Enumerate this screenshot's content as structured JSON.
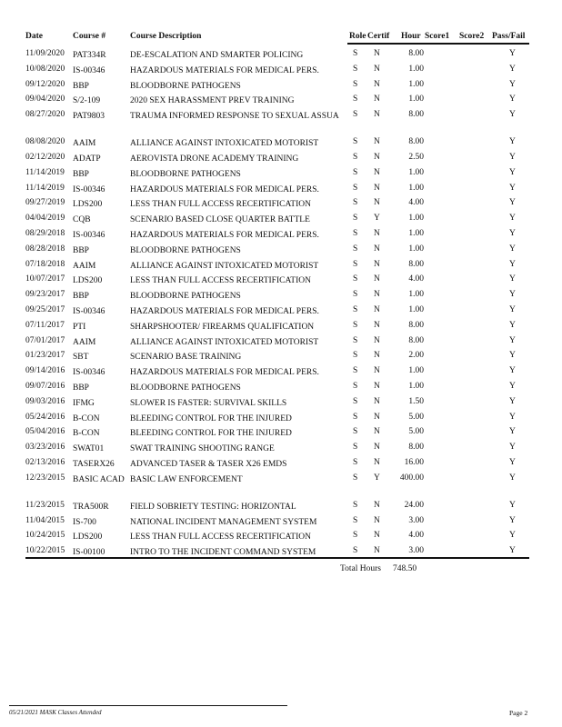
{
  "headers": {
    "date": "Date",
    "course": "Course #",
    "desc": "Course Description",
    "role": "Role",
    "certif": "Certif",
    "hour": "Hour",
    "score1": "Score1",
    "score2": "Score2",
    "passfail": "Pass/Fail"
  },
  "rows": [
    {
      "date": "11/09/2020",
      "course": "PAT334R",
      "desc": "DE-ESCALATION AND SMARTER POLICING",
      "role": "S",
      "certif": "N",
      "hour": "8.00",
      "pf": "Y"
    },
    {
      "date": "10/08/2020",
      "course": "IS-00346",
      "desc": "HAZARDOUS MATERIALS FOR MEDICAL PERS.",
      "role": "S",
      "certif": "N",
      "hour": "1.00",
      "pf": "Y"
    },
    {
      "date": "09/12/2020",
      "course": "BBP",
      "desc": "BLOODBORNE PATHOGENS",
      "role": "S",
      "certif": "N",
      "hour": "1.00",
      "pf": "Y"
    },
    {
      "date": "09/04/2020",
      "course": "S/2-109",
      "desc": "2020 SEX HARASSMENT PREV TRAINING",
      "role": "S",
      "certif": "N",
      "hour": "1.00",
      "pf": "Y"
    },
    {
      "date": "08/27/2020",
      "course": "PAT9803",
      "desc": "TRAUMA INFORMED RESPONSE TO SEXUAL ASSUA",
      "role": "S",
      "certif": "N",
      "hour": "8.00",
      "pf": "Y",
      "tall": true
    },
    {
      "date": "08/08/2020",
      "course": "AAIM",
      "desc": "ALLIANCE AGAINST INTOXICATED MOTORIST",
      "role": "S",
      "certif": "N",
      "hour": "8.00",
      "pf": "Y"
    },
    {
      "date": "02/12/2020",
      "course": "ADATP",
      "desc": "AEROVISTA DRONE ACADEMY TRAINING",
      "role": "S",
      "certif": "N",
      "hour": "2.50",
      "pf": "Y"
    },
    {
      "date": "11/14/2019",
      "course": "BBP",
      "desc": "BLOODBORNE PATHOGENS",
      "role": "S",
      "certif": "N",
      "hour": "1.00",
      "pf": "Y"
    },
    {
      "date": "11/14/2019",
      "course": "IS-00346",
      "desc": "HAZARDOUS MATERIALS FOR MEDICAL PERS.",
      "role": "S",
      "certif": "N",
      "hour": "1.00",
      "pf": "Y"
    },
    {
      "date": "09/27/2019",
      "course": "LDS200",
      "desc": "LESS THAN FULL ACCESS RECERTIFICATION",
      "role": "S",
      "certif": "N",
      "hour": "4.00",
      "pf": "Y"
    },
    {
      "date": "04/04/2019",
      "course": "CQB",
      "desc": "SCENARIO BASED CLOSE QUARTER BATTLE",
      "role": "S",
      "certif": "Y",
      "hour": "1.00",
      "pf": "Y"
    },
    {
      "date": "08/29/2018",
      "course": "IS-00346",
      "desc": "HAZARDOUS MATERIALS FOR MEDICAL PERS.",
      "role": "S",
      "certif": "N",
      "hour": "1.00",
      "pf": "Y"
    },
    {
      "date": "08/28/2018",
      "course": "BBP",
      "desc": "BLOODBORNE PATHOGENS",
      "role": "S",
      "certif": "N",
      "hour": "1.00",
      "pf": "Y"
    },
    {
      "date": "07/18/2018",
      "course": "AAIM",
      "desc": "ALLIANCE AGAINST INTOXICATED MOTORIST",
      "role": "S",
      "certif": "N",
      "hour": "8.00",
      "pf": "Y"
    },
    {
      "date": "10/07/2017",
      "course": "LDS200",
      "desc": "LESS THAN FULL ACCESS RECERTIFICATION",
      "role": "S",
      "certif": "N",
      "hour": "4.00",
      "pf": "Y"
    },
    {
      "date": "09/23/2017",
      "course": "BBP",
      "desc": "BLOODBORNE PATHOGENS",
      "role": "S",
      "certif": "N",
      "hour": "1.00",
      "pf": "Y"
    },
    {
      "date": "09/25/2017",
      "course": "IS-00346",
      "desc": "HAZARDOUS MATERIALS FOR MEDICAL PERS.",
      "role": "S",
      "certif": "N",
      "hour": "1.00",
      "pf": "Y"
    },
    {
      "date": "07/11/2017",
      "course": "PTI",
      "desc": "SHARPSHOOTER/ FIREARMS QUALIFICATION",
      "role": "S",
      "certif": "N",
      "hour": "8.00",
      "pf": "Y"
    },
    {
      "date": "07/01/2017",
      "course": "AAIM",
      "desc": "ALLIANCE AGAINST INTOXICATED MOTORIST",
      "role": "S",
      "certif": "N",
      "hour": "8.00",
      "pf": "Y"
    },
    {
      "date": "01/23/2017",
      "course": "SBT",
      "desc": "SCENARIO BASE TRAINING",
      "role": "S",
      "certif": "N",
      "hour": "2.00",
      "pf": "Y"
    },
    {
      "date": "09/14/2016",
      "course": "IS-00346",
      "desc": "HAZARDOUS MATERIALS FOR MEDICAL PERS.",
      "role": "S",
      "certif": "N",
      "hour": "1.00",
      "pf": "Y"
    },
    {
      "date": "09/07/2016",
      "course": "BBP",
      "desc": "BLOODBORNE PATHOGENS",
      "role": "S",
      "certif": "N",
      "hour": "1.00",
      "pf": "Y"
    },
    {
      "date": "09/03/2016",
      "course": "IFMG",
      "desc": "SLOWER IS FASTER: SURVIVAL SKILLS",
      "role": "S",
      "certif": "N",
      "hour": "1.50",
      "pf": "Y"
    },
    {
      "date": "05/24/2016",
      "course": "B-CON",
      "desc": "BLEEDING CONTROL FOR THE INJURED",
      "role": "S",
      "certif": "N",
      "hour": "5.00",
      "pf": "Y"
    },
    {
      "date": "05/04/2016",
      "course": "B-CON",
      "desc": "BLEEDING CONTROL FOR THE INJURED",
      "role": "S",
      "certif": "N",
      "hour": "5.00",
      "pf": "Y"
    },
    {
      "date": "03/23/2016",
      "course": "SWAT01",
      "desc": "SWAT TRAINING SHOOTING RANGE",
      "role": "S",
      "certif": "N",
      "hour": "8.00",
      "pf": "Y"
    },
    {
      "date": "02/13/2016",
      "course": "TASERX26",
      "desc": "ADVANCED TASER & TASER X26 EMDS",
      "role": "S",
      "certif": "N",
      "hour": "16.00",
      "pf": "Y"
    },
    {
      "date": "12/23/2015",
      "course": "BASIC ACAD",
      "desc": "BASIC LAW ENFORCEMENT",
      "role": "S",
      "certif": "Y",
      "hour": "400.00",
      "pf": "Y",
      "tall": true
    },
    {
      "date": "11/23/2015",
      "course": "TRA500R",
      "desc": "FIELD SOBRIETY TESTING: HORIZONTAL",
      "role": "S",
      "certif": "N",
      "hour": "24.00",
      "pf": "Y"
    },
    {
      "date": "11/04/2015",
      "course": "IS-700",
      "desc": "NATIONAL INCIDENT MANAGEMENT SYSTEM",
      "role": "S",
      "certif": "N",
      "hour": "3.00",
      "pf": "Y"
    },
    {
      "date": "10/24/2015",
      "course": "LDS200",
      "desc": "LESS THAN FULL ACCESS RECERTIFICATION",
      "role": "S",
      "certif": "N",
      "hour": "4.00",
      "pf": "Y"
    },
    {
      "date": "10/22/2015",
      "course": "IS-00100",
      "desc": "INTRO TO THE INCIDENT COMMAND SYSTEM",
      "role": "S",
      "certif": "N",
      "hour": "3.00",
      "pf": "Y"
    }
  ],
  "total": {
    "label": "Total Hours",
    "value": "748.50"
  },
  "footer": {
    "left": "05/21/2021 MASK Classes Attended",
    "page": "Page 2"
  }
}
